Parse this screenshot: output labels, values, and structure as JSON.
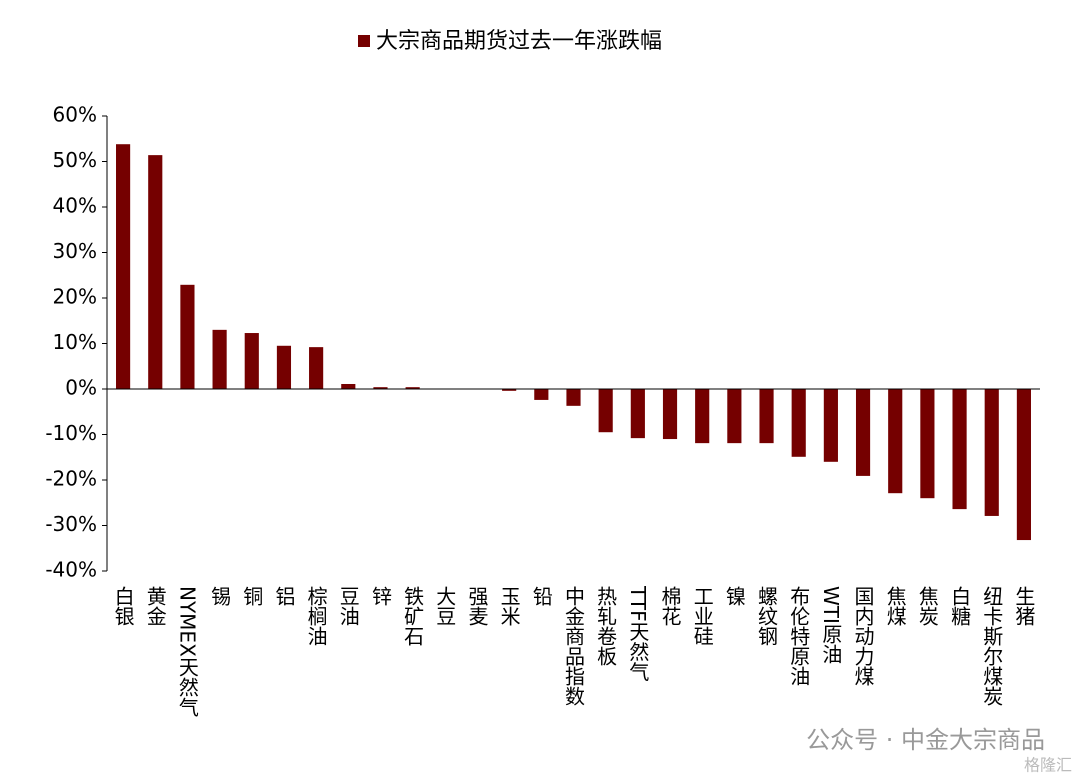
{
  "chart_data": {
    "type": "bar",
    "series": [
      {
        "name": "大宗商品期货过去一年涨跌幅",
        "color": "#750000",
        "values": [
          53.8,
          51.4,
          22.9,
          13.0,
          12.3,
          9.5,
          9.2,
          1.1,
          0.4,
          0.4,
          0,
          0,
          -0.4,
          -2.4,
          -3.7,
          -9.5,
          -10.8,
          -11.0,
          -11.9,
          -11.9,
          -11.9,
          -14.9,
          -16.0,
          -19.1,
          -22.9,
          -24.0,
          -26.4,
          -27.9,
          -33.2
        ]
      }
    ],
    "categories": [
      "白银",
      "黄金",
      "NYMEX天然气",
      "锡",
      "铜",
      "铝",
      "棕榈油",
      "豆油",
      "锌",
      "铁矿石",
      "大豆",
      "强麦",
      "玉米",
      "铅",
      "中金商品指数",
      "热轧卷板",
      "TTF天然气",
      "棉花",
      "工业硅",
      "镍",
      "螺纹钢",
      "布伦特原油",
      "WTI原油",
      "国内动力煤",
      "焦煤",
      "焦炭",
      "白糖",
      "纽卡斯尔煤炭",
      "生猪"
    ],
    "ylim": [
      -40,
      60
    ],
    "yticks": [
      {
        "value": -40,
        "label": "-40%"
      },
      {
        "value": -30,
        "label": "-30%"
      },
      {
        "value": -20,
        "label": "-20%"
      },
      {
        "value": -10,
        "label": "-10%"
      },
      {
        "value": 0,
        "label": "0%"
      },
      {
        "value": 10,
        "label": "10%"
      },
      {
        "value": 20,
        "label": "20%"
      },
      {
        "value": 30,
        "label": "30%"
      },
      {
        "value": 40,
        "label": "40%"
      },
      {
        "value": 50,
        "label": "50%"
      },
      {
        "value": 60,
        "label": "60%"
      }
    ],
    "legend": "top",
    "watermark": [
      "公众号 · 中金大宗商品",
      "格隆汇"
    ]
  }
}
